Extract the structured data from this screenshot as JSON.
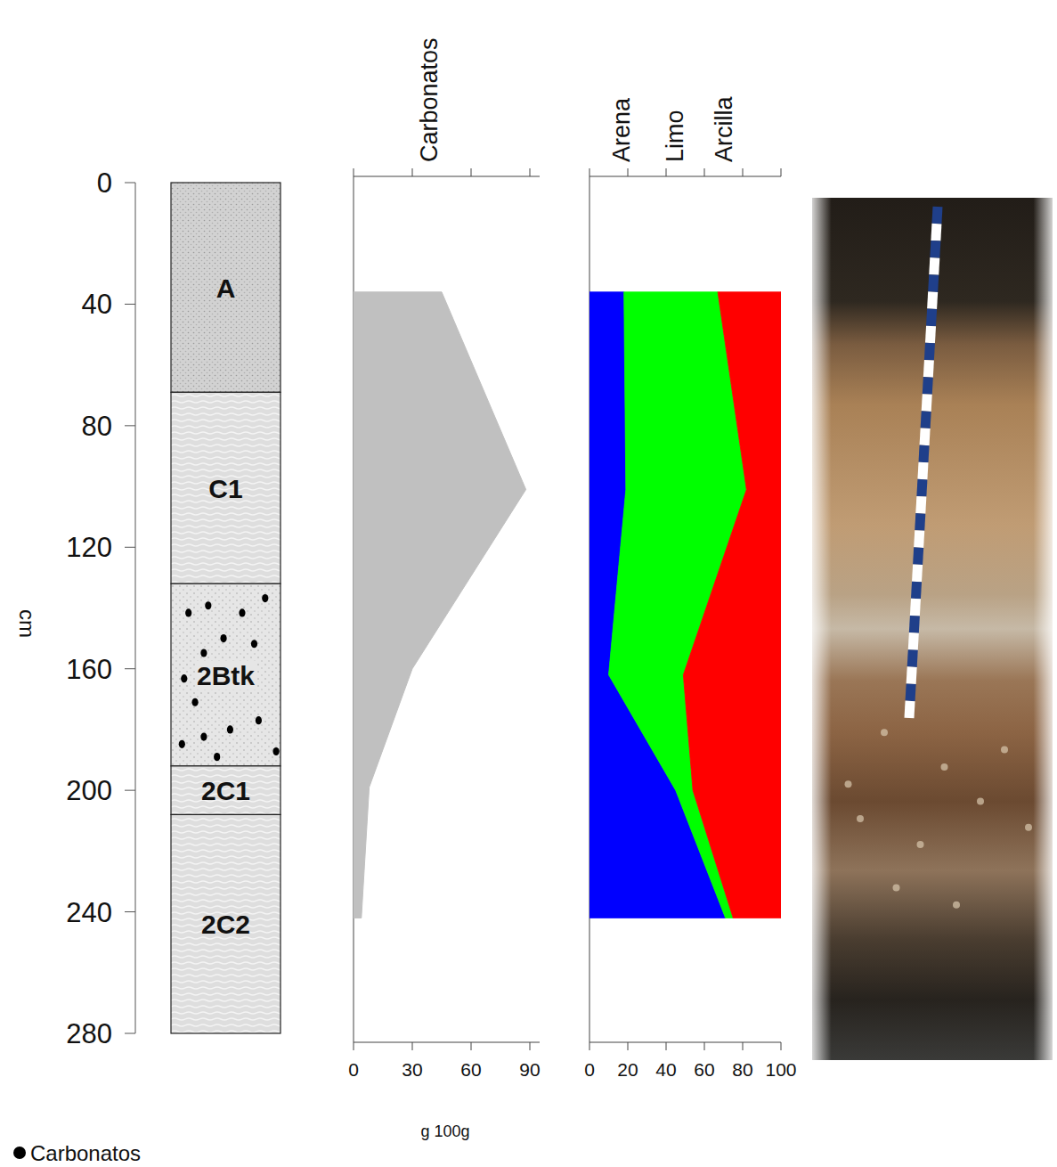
{
  "depth_axis": {
    "label": "cm",
    "ylim": [
      0,
      280
    ],
    "yticks": [
      0,
      40,
      80,
      120,
      160,
      200,
      240,
      280
    ]
  },
  "horizons": [
    {
      "name": "A",
      "top": 0,
      "bottom": 69
    },
    {
      "name": "C1",
      "top": 69,
      "bottom": 132
    },
    {
      "name": "2Btk",
      "top": 132,
      "bottom": 192
    },
    {
      "name": "2C1",
      "top": 192,
      "bottom": 208
    },
    {
      "name": "2C2",
      "top": 208,
      "bottom": 280
    }
  ],
  "chart_data": [
    {
      "type": "area",
      "title": "Carbonatos",
      "x_label": "g 100g",
      "color": "#c0c0c0",
      "depth": [
        36,
        101,
        160,
        199,
        242
      ],
      "values": [
        45,
        88,
        30,
        8,
        4
      ],
      "xlim": [
        0,
        95
      ],
      "xticks": [
        0,
        30,
        60,
        90
      ],
      "ylim": [
        0,
        280
      ]
    },
    {
      "type": "area",
      "stacked": true,
      "depth": [
        36,
        101,
        162,
        200,
        242
      ],
      "series": [
        {
          "name": "Arena",
          "color": "#0000ff",
          "values": [
            18,
            19,
            10,
            45,
            71
          ]
        },
        {
          "name": "Limo",
          "color": "#00ff00",
          "values": [
            49,
            63,
            39,
            9,
            4
          ]
        },
        {
          "name": "Arcilla",
          "color": "#ff0000",
          "values": [
            33,
            18,
            51,
            46,
            25
          ]
        }
      ],
      "xlim": [
        0,
        100
      ],
      "xticks": [
        0,
        20,
        40,
        60,
        80,
        100
      ],
      "ylim": [
        0,
        280
      ]
    }
  ],
  "horizon_legend": {
    "label": "Carbonatos"
  }
}
